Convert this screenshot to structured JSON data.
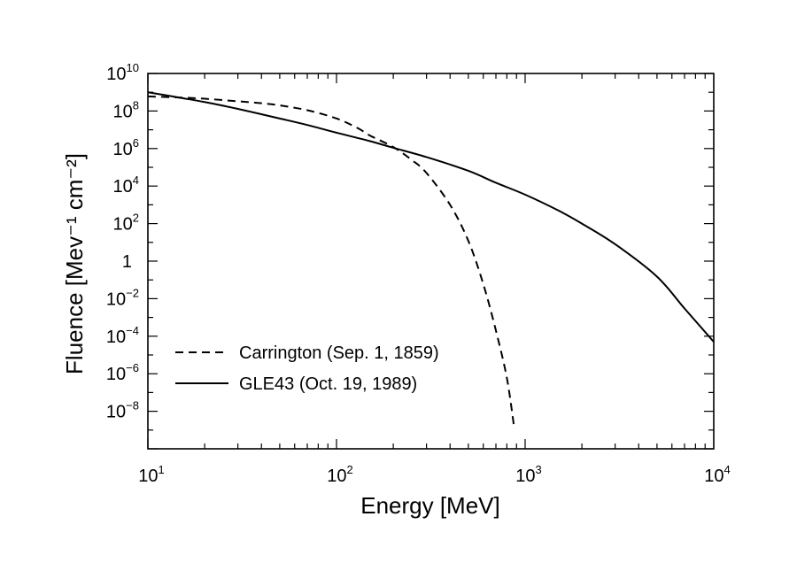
{
  "chart_data": {
    "type": "line",
    "xlabel": "Energy [MeV]",
    "ylabel": "Fluence [Mev⁻¹ cm⁻²]",
    "x_scale": "log",
    "y_scale": "log",
    "xlim": [
      10,
      10000
    ],
    "ylim": [
      1e-10,
      10000000000.0
    ],
    "grid": false,
    "legend_position": "lower-left",
    "x_ticks": [
      {
        "base": "10",
        "exp": "1"
      },
      {
        "base": "10",
        "exp": "2"
      },
      {
        "base": "10",
        "exp": "3"
      },
      {
        "base": "10",
        "exp": "4"
      }
    ],
    "y_ticks": [
      {
        "base": "10",
        "exp": "10",
        "value": 10000000000.0
      },
      {
        "base": "10",
        "exp": "8",
        "value": 100000000.0
      },
      {
        "base": "10",
        "exp": "6",
        "value": 1000000.0
      },
      {
        "base": "10",
        "exp": "4",
        "value": 10000.0
      },
      {
        "base": "10",
        "exp": "2",
        "value": 100.0
      },
      {
        "base": "1",
        "exp": "",
        "value": 1
      },
      {
        "base": "10",
        "exp": "−2",
        "value": 0.01
      },
      {
        "base": "10",
        "exp": "−4",
        "value": 0.0001
      },
      {
        "base": "10",
        "exp": "−6",
        "value": 1e-06
      },
      {
        "base": "10",
        "exp": "−8",
        "value": 1e-08
      }
    ],
    "series": [
      {
        "name": "Carrington (Sep. 1, 1859)",
        "style": "dashed",
        "color": "#000000",
        "x": [
          10,
          15,
          20,
          30,
          40,
          50,
          70,
          100,
          130,
          150,
          200,
          250,
          300,
          400,
          500,
          600,
          700,
          800,
          870
        ],
        "y": [
          600000000.0,
          520000000.0,
          450000000.0,
          330000000.0,
          260000000.0,
          200000000.0,
          110000000.0,
          40000000.0,
          12000000.0,
          5000000.0,
          1200000.0,
          250000.0,
          50000.0,
          1000.0,
          12.0,
          0.06,
          0.0002,
          6e-07,
          2e-09
        ]
      },
      {
        "name": "GLE43 (Oct. 19, 1989)",
        "style": "solid",
        "color": "#000000",
        "x": [
          10,
          15,
          20,
          30,
          50,
          70,
          100,
          150,
          200,
          300,
          500,
          700,
          1000,
          1500,
          2000,
          3000,
          5000,
          7000,
          10000
        ],
        "y": [
          1000000000.0,
          500000000.0,
          300000000.0,
          130000000.0,
          40000000.0,
          18000000.0,
          7000000.0,
          2500000.0,
          1100000.0,
          350000.0,
          65000.0,
          15000.0,
          3500.0,
          500.0,
          100.0,
          8,
          0.15,
          0.003,
          5e-05
        ]
      }
    ]
  }
}
